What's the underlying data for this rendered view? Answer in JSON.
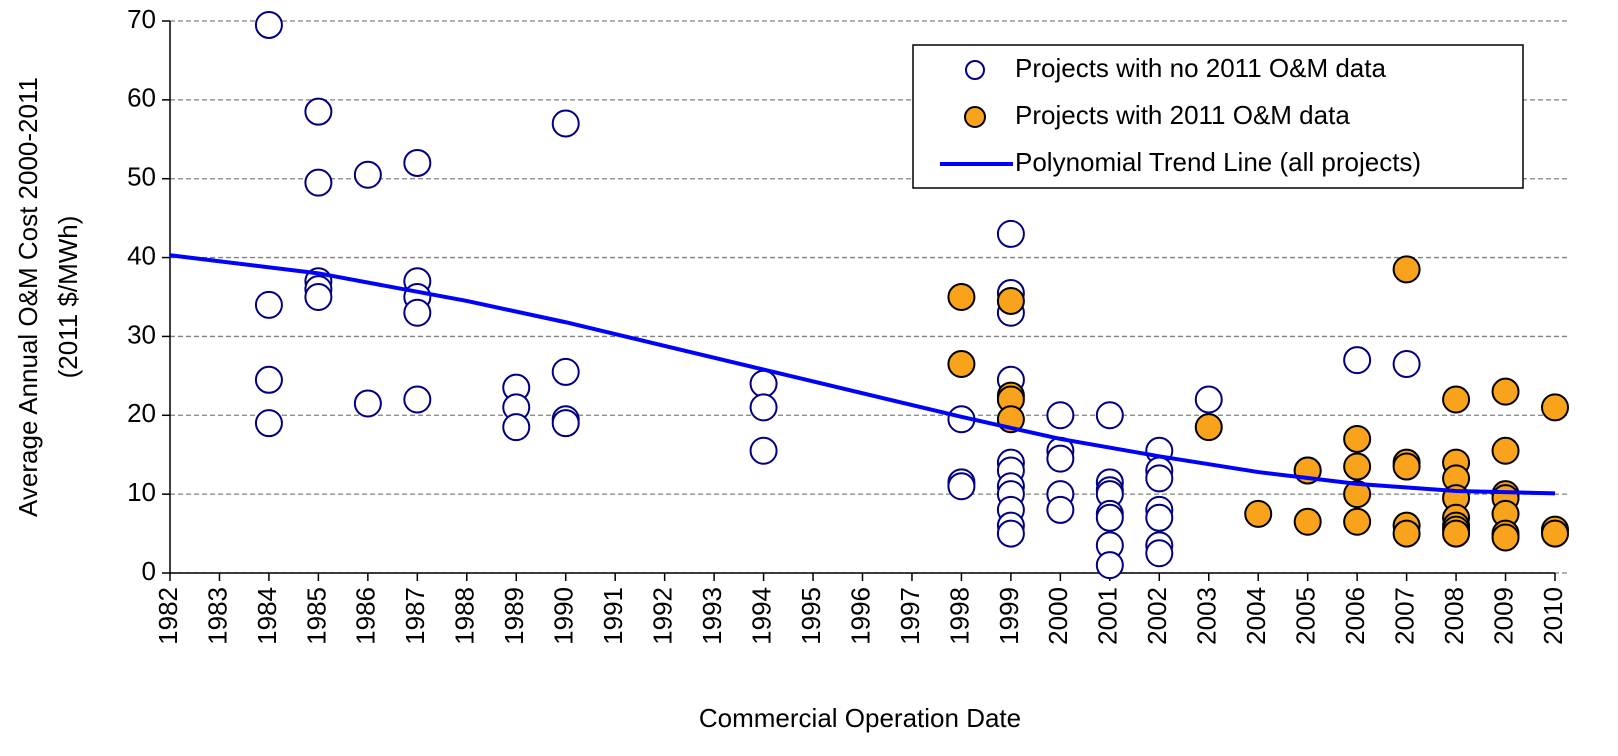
{
  "chart_data": {
    "type": "scatter",
    "xlabel": "Commercial Operation Date",
    "ylabel": [
      "Average Annual O&M Cost 2000-2011",
      "(2011 $/MWh)"
    ],
    "xlim": [
      1982,
      2010
    ],
    "xticks": [
      1982,
      1983,
      1984,
      1985,
      1986,
      1987,
      1988,
      1989,
      1990,
      1991,
      1992,
      1993,
      1994,
      1995,
      1996,
      1997,
      1998,
      1999,
      2000,
      2001,
      2002,
      2003,
      2004,
      2005,
      2006,
      2007,
      2008,
      2009,
      2010
    ],
    "ylim": [
      0,
      70
    ],
    "yticks": [
      0,
      10,
      20,
      30,
      40,
      50,
      60,
      70
    ],
    "grid": true,
    "legend": "upper right",
    "series": [
      {
        "name": "Projects with no 2011 O&M data",
        "type": "scatter",
        "marker": "open",
        "color": "#000080",
        "x": [
          1984,
          1984,
          1984,
          1984,
          1985,
          1985,
          1985,
          1985,
          1985,
          1986,
          1986,
          1987,
          1987,
          1987,
          1987,
          1987,
          1989,
          1989,
          1989,
          1990,
          1990,
          1990,
          1990,
          1994,
          1994,
          1994,
          1998,
          1998,
          1998,
          1999,
          1999,
          1999,
          1999,
          1999,
          1999,
          1999,
          1999,
          1999,
          1999,
          1999,
          2000,
          2000,
          2000,
          2000,
          2000,
          2001,
          2001,
          2001,
          2001,
          2001,
          2001,
          2001,
          2001,
          2002,
          2002,
          2002,
          2002,
          2002,
          2002,
          2002,
          2003,
          2005,
          2006,
          2007
        ],
        "values": [
          69.5,
          34,
          24.5,
          19,
          58.5,
          49.5,
          37,
          36,
          35,
          50.5,
          21.5,
          52,
          37,
          35,
          33,
          22,
          23.5,
          21,
          18.5,
          57,
          25.5,
          19.5,
          19,
          24,
          21,
          15.5,
          19.5,
          11.5,
          11,
          43,
          35.5,
          33,
          24.5,
          14,
          13,
          11,
          10,
          8,
          6,
          5,
          20,
          15.5,
          14.5,
          10,
          8,
          20,
          11.5,
          10.5,
          10,
          7.5,
          7,
          3.5,
          1,
          15.5,
          13,
          12,
          8,
          7,
          3.5,
          2.5,
          22,
          13,
          27,
          26.5
        ]
      },
      {
        "name": "Projects with 2011 O&M data",
        "type": "scatter",
        "marker": "filled",
        "color": "#f9a21b",
        "x": [
          1998,
          1998,
          1999,
          1999,
          1999,
          1999,
          2003,
          2004,
          2005,
          2005,
          2006,
          2006,
          2006,
          2006,
          2007,
          2007,
          2007,
          2007,
          2007,
          2008,
          2008,
          2008,
          2008,
          2008,
          2008,
          2008,
          2008,
          2009,
          2009,
          2009,
          2009,
          2009,
          2009,
          2009,
          2010,
          2010,
          2010
        ],
        "values": [
          35,
          26.5,
          34.5,
          22.5,
          22,
          19.5,
          18.5,
          7.5,
          13,
          6.5,
          17,
          13.5,
          10,
          6.5,
          38.5,
          14,
          13.5,
          6,
          5,
          22,
          14,
          12,
          9.5,
          7,
          6,
          5.5,
          5,
          23,
          15.5,
          10,
          9.5,
          7.5,
          5,
          4.5,
          21,
          5.5,
          5
        ]
      },
      {
        "name": "Polynomial Trend Line (all projects)",
        "type": "line",
        "color": "#0000ff",
        "x": [
          1982,
          1985,
          1988,
          1990,
          1994,
          1998,
          2000,
          2002,
          2004,
          2006,
          2008,
          2010
        ],
        "values": [
          40.3,
          38,
          34.5,
          31.8,
          25.8,
          19.8,
          17,
          14.8,
          12.8,
          11.3,
          10.4,
          10.1
        ]
      }
    ]
  }
}
